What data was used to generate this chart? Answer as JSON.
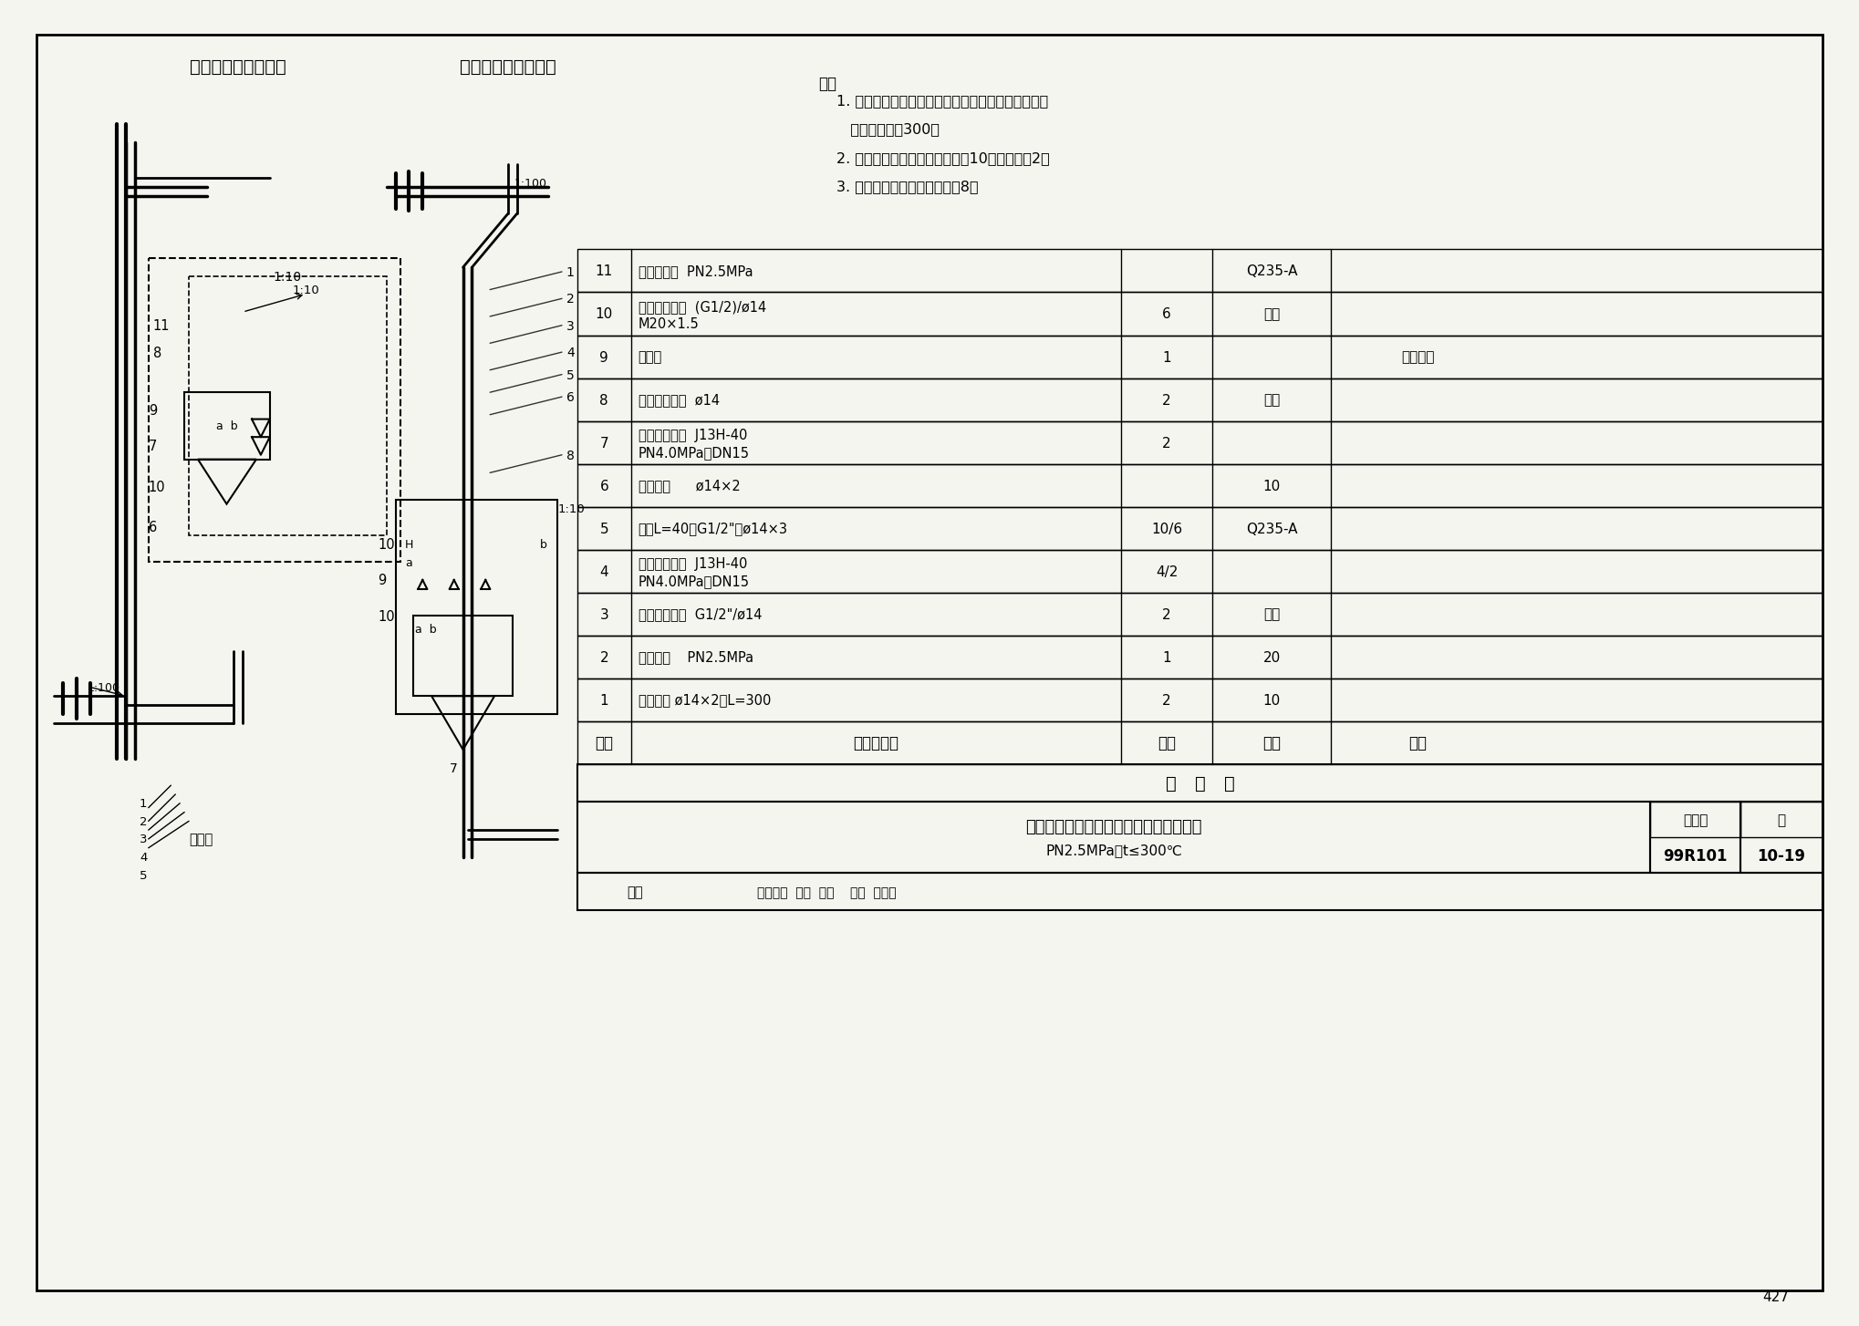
{
  "title_left1": "差压计高于节流装置",
  "title_left2": "差压计低于节流装置",
  "note_title": "注：",
  "notes": [
    "1. 差压计高于节流装置时，取压口至下排污阀的垂管",
    "   长度不宜小于300。",
    "2. 若使用双波纹管差压计，件号10的件数改为2。",
    "3. 差压计箱外按装时取消件号8。"
  ],
  "table_headers": [
    "序号",
    "名称及规格",
    "数量",
    "材料",
    "备注"
  ],
  "table_rows": [
    [
      "11",
      "气体收集器  PN2.5MPa",
      "",
      "Q235-A",
      ""
    ],
    [
      "10",
      "直通终端接头  (G1/2)/ø14\n        M20×1.5",
      "6",
      "碳钢",
      ""
    ],
    [
      "9",
      "三阀组",
      "1",
      "",
      "带变送器"
    ],
    [
      "8",
      "直通穿板接头  ø14",
      "2",
      "碳钢",
      ""
    ],
    [
      "7",
      "内螺纹截止阀  J13H-40\n        PN4.0MPa，DN15",
      "2",
      "",
      ""
    ],
    [
      "6",
      "无缝钢管      ø14×2",
      "",
      "10",
      ""
    ],
    [
      "5",
      "短节L=40，G1/2\"，ø14×3",
      "10/6",
      "Q235-A",
      ""
    ],
    [
      "4",
      "内螺纹截止阀  J13H-40\n        PN4.0MPa，DN15",
      "4/2",
      "",
      ""
    ],
    [
      "3",
      "直通终端接头  G1/2\"/ø14",
      "2",
      "碳钢",
      ""
    ],
    [
      "2",
      "冷凝容器    PN2.5MPa",
      "1",
      "20",
      ""
    ],
    [
      "1",
      "无缝钢管 ø14×2，L=300",
      "2",
      "10",
      ""
    ]
  ],
  "bottom_title": "测量蒸汽流量管路连接图（带平衡容器）",
  "bottom_subtitle": "PN2.5MPa，t≤300℃",
  "chart_no_label": "图集号",
  "chart_no": "99R101",
  "page_label": "页",
  "page_no": "10-19",
  "drawing_no": "427",
  "bg_color": "#f5f5f0",
  "line_color": "#000000",
  "table_bg": "#ffffff"
}
